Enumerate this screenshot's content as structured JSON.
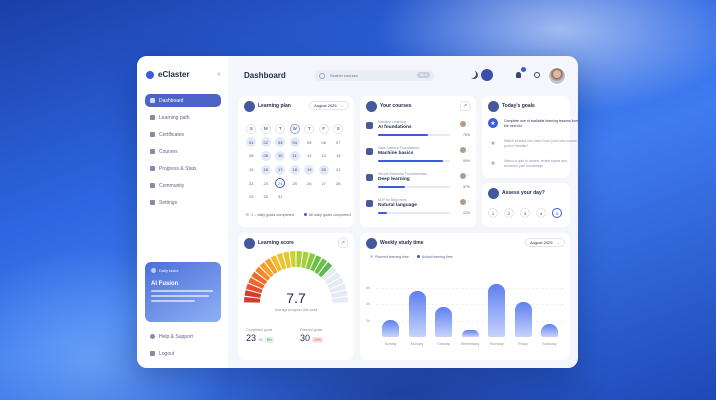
{
  "app": {
    "name": "eClaster"
  },
  "sidebar": {
    "items": [
      {
        "label": "Dashboard",
        "icon": "grid-icon",
        "active": true
      },
      {
        "label": "Learning path",
        "icon": "path-icon"
      },
      {
        "label": "Certificates",
        "icon": "certificate-icon"
      },
      {
        "label": "Courses",
        "icon": "folder-icon"
      },
      {
        "label": "Progress & Stats",
        "icon": "stats-icon"
      },
      {
        "label": "Community",
        "icon": "community-icon"
      },
      {
        "label": "Settings",
        "icon": "gear-icon"
      }
    ],
    "promo": {
      "tag": "Daily tasks",
      "title": "AI Fusion"
    },
    "bottom_items": [
      {
        "label": "Help & Support",
        "icon": "help-icon"
      },
      {
        "label": "Logout",
        "icon": "logout-icon"
      }
    ]
  },
  "header": {
    "title": "Dashboard",
    "search_placeholder": "Search courses",
    "shortcut": "⌘ K"
  },
  "learning_plan": {
    "title": "Learning plan",
    "month": "August 2025",
    "weekdays": [
      "S",
      "M",
      "T",
      "W",
      "T",
      "F",
      "S"
    ],
    "days": [
      "",
      "",
      "",
      "",
      "",
      "",
      "",
      "01",
      "02",
      "03",
      "04",
      "05",
      "06",
      "07",
      "08",
      "09",
      "10",
      "11",
      "12",
      "13",
      "14",
      "15",
      "16",
      "17",
      "18",
      "19",
      "20",
      "21",
      "22",
      "23",
      "24",
      "25",
      "26",
      "27",
      "28",
      "29",
      "30",
      "31",
      "",
      "",
      "",
      ""
    ],
    "legend_partial": "1 – daily goals completed",
    "legend_all": "All daily goals completed"
  },
  "courses": {
    "title": "Your courses",
    "items": [
      {
        "subtitle": "Machine Learning",
        "name": "AI foundations",
        "progress": 0.7,
        "pct": "70%"
      },
      {
        "subtitle": "Data Science Foundations",
        "name": "Machine basics",
        "progress": 0.9,
        "pct": "90%"
      },
      {
        "subtitle": "Neural Networks Fundamentals",
        "name": "Deep learning",
        "progress": 0.37,
        "pct": "37%"
      },
      {
        "subtitle": "NLP for Beginners",
        "name": "Natural language",
        "progress": 0.12,
        "pct": "12%"
      }
    ]
  },
  "goals": {
    "title": "Today's goals",
    "items": [
      {
        "text": "Complete one of available learning lessons from the next list",
        "done": true
      },
      {
        "text": "Watch at least one video from your new course you've enrolled",
        "done": false
      },
      {
        "text": "Select a quiz to review, revise topics and reinforce your knowledge",
        "done": false
      }
    ]
  },
  "assess": {
    "title": "Assess your day?",
    "options": [
      "1",
      "2",
      "3",
      "4",
      "5"
    ],
    "selected": "5"
  },
  "learning_score": {
    "title": "Learning score",
    "value": "7.7",
    "score": 7.7,
    "max": 10,
    "caption": "Average progress this week",
    "completed_label": "Completed goals",
    "completed_value": "23",
    "completed_unit": "/30",
    "completed_badge": "8%",
    "planned_label": "Planned goals",
    "planned_value": "30",
    "planned_badge": "10%"
  },
  "chart_data": {
    "type": "bar",
    "title": "Weekly study time",
    "period": "August 2025",
    "legend": [
      "Planned learning time",
      "Actual learning time"
    ],
    "y_ticks": [
      "6h",
      "4h",
      "2h"
    ],
    "categories": [
      "Sunday",
      "Monday",
      "Tuesday",
      "Wednesday",
      "Thursday",
      "Friday",
      "Saturday"
    ],
    "values": [
      2.1,
      5.6,
      3.6,
      0.8,
      6.4,
      4.2,
      1.6
    ],
    "ylim": [
      0,
      8
    ]
  },
  "colors": {
    "accent": "#3b5bdb",
    "sidebar_active": "#4a63c4"
  }
}
